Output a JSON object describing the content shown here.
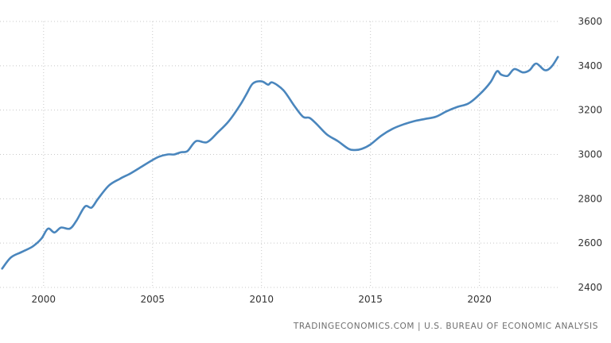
{
  "chart_data": {
    "type": "line",
    "title": "",
    "xlabel": "",
    "ylabel": "",
    "xlim": [
      1998.0,
      2023.7
    ],
    "ylim": [
      2400,
      3600
    ],
    "grid": true,
    "x_ticks": [
      2000,
      2005,
      2010,
      2015,
      2020
    ],
    "x_tick_labels": [
      "2000",
      "2005",
      "2010",
      "2015",
      "2020"
    ],
    "y_ticks": [
      2400,
      2600,
      2800,
      3000,
      3200,
      3400,
      3600
    ],
    "y_tick_labels": [
      "2400",
      "2600",
      "2800",
      "3000",
      "3200",
      "3400",
      "3600"
    ],
    "series": [
      {
        "color": "#4a86bd",
        "x": [
          1998.1,
          1998.5,
          1999.0,
          1999.5,
          1999.9,
          2000.2,
          2000.5,
          2000.8,
          2001.2,
          2001.5,
          2001.9,
          2002.2,
          2002.5,
          2003.0,
          2003.5,
          2004.0,
          2004.5,
          2005.0,
          2005.3,
          2005.7,
          2006.0,
          2006.3,
          2006.6,
          2007.0,
          2007.5,
          2008.0,
          2008.5,
          2009.0,
          2009.3,
          2009.6,
          2010.0,
          2010.3,
          2010.5,
          2011.0,
          2011.5,
          2011.9,
          2012.2,
          2012.5,
          2013.0,
          2013.5,
          2014.0,
          2014.3,
          2014.6,
          2015.0,
          2015.5,
          2016.0,
          2016.5,
          2017.0,
          2017.5,
          2018.0,
          2018.5,
          2019.0,
          2019.5,
          2020.0,
          2020.5,
          2020.8,
          2021.0,
          2021.3,
          2021.6,
          2022.0,
          2022.3,
          2022.6,
          2023.0,
          2023.3,
          2023.6
        ],
        "values": [
          2485,
          2535,
          2560,
          2585,
          2620,
          2665,
          2648,
          2670,
          2665,
          2700,
          2765,
          2760,
          2800,
          2860,
          2890,
          2915,
          2945,
          2975,
          2990,
          3000,
          3000,
          3010,
          3015,
          3060,
          3055,
          3100,
          3150,
          3220,
          3270,
          3320,
          3330,
          3315,
          3325,
          3290,
          3220,
          3170,
          3165,
          3140,
          3090,
          3060,
          3025,
          3020,
          3025,
          3045,
          3085,
          3115,
          3135,
          3150,
          3160,
          3170,
          3195,
          3215,
          3230,
          3270,
          3325,
          3375,
          3360,
          3355,
          3385,
          3370,
          3380,
          3410,
          3380,
          3395,
          3440
        ]
      }
    ]
  },
  "source_text": "TRADINGECONOMICS.COM  |  U.S. BUREAU OF ECONOMIC ANALYSIS"
}
